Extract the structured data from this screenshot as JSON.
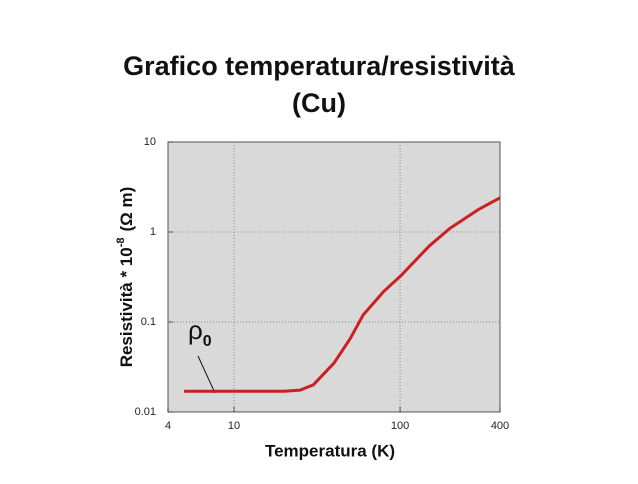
{
  "chart_data": {
    "type": "line",
    "title": "Grafico temperatura/resistività",
    "subtitle": "(Cu)",
    "xlabel": "Temperatura (K)",
    "ylabel": "Resistività * 10",
    "ylabel_exponent": "-8",
    "ylabel_unit": "(Ω m)",
    "annotation": "ρ",
    "annotation_subscript": "0",
    "x": [
      5,
      10,
      20,
      25,
      30,
      40,
      50,
      60,
      80,
      100,
      150,
      200,
      300,
      400
    ],
    "series": [
      {
        "name": "Cu",
        "color": "#cc1f1f",
        "values": [
          0.017,
          0.017,
          0.017,
          0.0175,
          0.02,
          0.035,
          0.065,
          0.12,
          0.22,
          0.32,
          0.7,
          1.1,
          1.8,
          2.4
        ]
      }
    ],
    "xlim": [
      4,
      400
    ],
    "ylim": [
      0.01,
      10
    ],
    "xticks": [
      4,
      10,
      100,
      400
    ],
    "yticks": [
      0.01,
      0.1,
      1,
      10
    ],
    "xscale": "log",
    "yscale": "log",
    "grid": true
  }
}
